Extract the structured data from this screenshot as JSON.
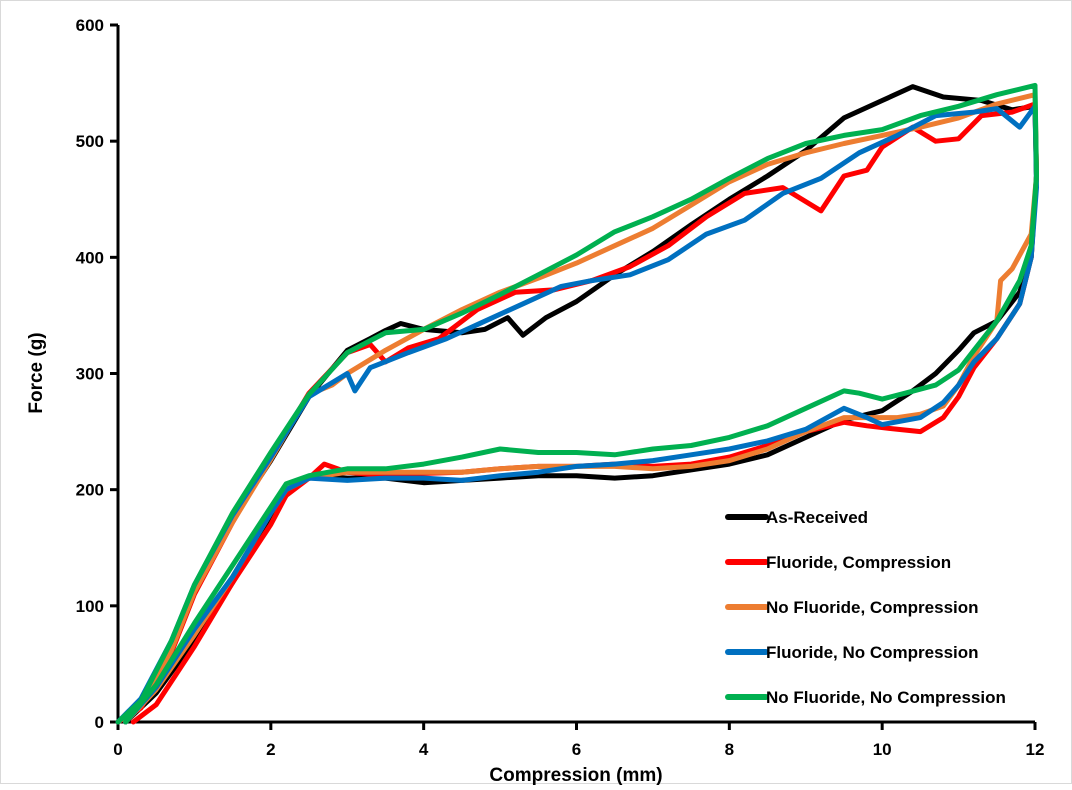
{
  "chart_data": {
    "type": "line",
    "title": "",
    "xlabel": "Compression (mm)",
    "ylabel": "Force (g)",
    "xlim": [
      0,
      12
    ],
    "ylim": [
      0,
      600
    ],
    "xticks": [
      0,
      2,
      4,
      6,
      8,
      10,
      12
    ],
    "yticks": [
      0,
      100,
      200,
      300,
      400,
      500,
      600
    ],
    "grid": false,
    "legend_position": "bottom-right",
    "series": [
      {
        "name": "As-Received",
        "color": "#000000",
        "points": [
          [
            0,
            0
          ],
          [
            0.3,
            15
          ],
          [
            0.7,
            65
          ],
          [
            1.0,
            115
          ],
          [
            1.5,
            175
          ],
          [
            2.0,
            225
          ],
          [
            2.5,
            280
          ],
          [
            3.0,
            320
          ],
          [
            3.3,
            330
          ],
          [
            3.5,
            337
          ],
          [
            3.7,
            343
          ],
          [
            4.0,
            338
          ],
          [
            4.5,
            335
          ],
          [
            4.8,
            338
          ],
          [
            5.1,
            348
          ],
          [
            5.3,
            333
          ],
          [
            5.6,
            348
          ],
          [
            6.0,
            362
          ],
          [
            6.5,
            385
          ],
          [
            7.0,
            405
          ],
          [
            7.5,
            428
          ],
          [
            8.0,
            450
          ],
          [
            8.5,
            470
          ],
          [
            9.0,
            492
          ],
          [
            9.5,
            520
          ],
          [
            10.0,
            535
          ],
          [
            10.4,
            547
          ],
          [
            10.8,
            538
          ],
          [
            11.3,
            535
          ],
          [
            11.7,
            527
          ],
          [
            12.0,
            530
          ],
          [
            12.02,
            470
          ],
          [
            11.95,
            400
          ],
          [
            11.8,
            370
          ],
          [
            11.5,
            345
          ],
          [
            11.2,
            335
          ],
          [
            11.0,
            320
          ],
          [
            10.7,
            300
          ],
          [
            10.4,
            285
          ],
          [
            10.0,
            268
          ],
          [
            9.5,
            260
          ],
          [
            9.0,
            245
          ],
          [
            8.5,
            230
          ],
          [
            8.0,
            222
          ],
          [
            7.5,
            217
          ],
          [
            7.0,
            212
          ],
          [
            6.5,
            210
          ],
          [
            6.0,
            212
          ],
          [
            5.5,
            212
          ],
          [
            5.0,
            210
          ],
          [
            4.5,
            208
          ],
          [
            4.0,
            206
          ],
          [
            3.5,
            210
          ],
          [
            3.0,
            210
          ],
          [
            2.6,
            212
          ],
          [
            2.3,
            205
          ],
          [
            2.0,
            175
          ],
          [
            1.5,
            120
          ],
          [
            1.0,
            70
          ],
          [
            0.5,
            25
          ],
          [
            0.1,
            0
          ]
        ]
      },
      {
        "name": "Fluoride, Compression",
        "color": "#ff0000",
        "points": [
          [
            0,
            0
          ],
          [
            0.3,
            12
          ],
          [
            0.7,
            60
          ],
          [
            1.0,
            110
          ],
          [
            1.5,
            172
          ],
          [
            2.0,
            228
          ],
          [
            2.5,
            283
          ],
          [
            3.0,
            318
          ],
          [
            3.3,
            325
          ],
          [
            3.5,
            310
          ],
          [
            3.8,
            322
          ],
          [
            4.2,
            330
          ],
          [
            4.7,
            355
          ],
          [
            5.2,
            370
          ],
          [
            5.7,
            372
          ],
          [
            6.2,
            380
          ],
          [
            6.7,
            392
          ],
          [
            7.2,
            410
          ],
          [
            7.7,
            435
          ],
          [
            8.2,
            455
          ],
          [
            8.7,
            460
          ],
          [
            9.0,
            448
          ],
          [
            9.2,
            440
          ],
          [
            9.5,
            470
          ],
          [
            9.8,
            475
          ],
          [
            10.0,
            495
          ],
          [
            10.4,
            512
          ],
          [
            10.7,
            500
          ],
          [
            11.0,
            502
          ],
          [
            11.3,
            522
          ],
          [
            11.7,
            525
          ],
          [
            12.0,
            532
          ],
          [
            12.02,
            470
          ],
          [
            11.95,
            400
          ],
          [
            11.8,
            360
          ],
          [
            11.5,
            330
          ],
          [
            11.2,
            305
          ],
          [
            11.0,
            280
          ],
          [
            10.8,
            262
          ],
          [
            10.5,
            250
          ],
          [
            10.2,
            252
          ],
          [
            9.8,
            255
          ],
          [
            9.5,
            258
          ],
          [
            9.0,
            250
          ],
          [
            8.5,
            238
          ],
          [
            8.0,
            228
          ],
          [
            7.5,
            222
          ],
          [
            7.0,
            220
          ],
          [
            6.5,
            222
          ],
          [
            6.0,
            220
          ],
          [
            5.5,
            220
          ],
          [
            5.0,
            218
          ],
          [
            4.5,
            215
          ],
          [
            4.0,
            214
          ],
          [
            3.5,
            212
          ],
          [
            3.0,
            215
          ],
          [
            2.7,
            222
          ],
          [
            2.5,
            210
          ],
          [
            2.2,
            195
          ],
          [
            2.0,
            170
          ],
          [
            1.5,
            120
          ],
          [
            1.0,
            65
          ],
          [
            0.5,
            15
          ],
          [
            0.2,
            0
          ]
        ]
      },
      {
        "name": "No Fluoride, Compression",
        "color": "#ed7d31",
        "points": [
          [
            0,
            0
          ],
          [
            0.3,
            15
          ],
          [
            0.7,
            62
          ],
          [
            1.0,
            112
          ],
          [
            1.5,
            172
          ],
          [
            2.0,
            226
          ],
          [
            2.5,
            282
          ],
          [
            2.8,
            290
          ],
          [
            3.0,
            300
          ],
          [
            3.5,
            320
          ],
          [
            4.0,
            338
          ],
          [
            4.5,
            355
          ],
          [
            5.0,
            370
          ],
          [
            5.5,
            382
          ],
          [
            6.0,
            395
          ],
          [
            6.5,
            410
          ],
          [
            7.0,
            425
          ],
          [
            7.5,
            445
          ],
          [
            8.0,
            465
          ],
          [
            8.5,
            480
          ],
          [
            9.0,
            490
          ],
          [
            9.5,
            498
          ],
          [
            10.0,
            505
          ],
          [
            10.5,
            512
          ],
          [
            11.0,
            520
          ],
          [
            11.5,
            532
          ],
          [
            12.0,
            540
          ],
          [
            12.02,
            470
          ],
          [
            11.95,
            420
          ],
          [
            11.7,
            390
          ],
          [
            11.55,
            380
          ],
          [
            11.5,
            345
          ],
          [
            11.2,
            315
          ],
          [
            11.0,
            290
          ],
          [
            10.8,
            272
          ],
          [
            10.5,
            265
          ],
          [
            10.2,
            262
          ],
          [
            10.0,
            262
          ],
          [
            9.5,
            262
          ],
          [
            9.0,
            250
          ],
          [
            8.5,
            235
          ],
          [
            8.0,
            225
          ],
          [
            7.5,
            220
          ],
          [
            7.0,
            218
          ],
          [
            6.5,
            220
          ],
          [
            6.0,
            220
          ],
          [
            5.5,
            220
          ],
          [
            5.0,
            218
          ],
          [
            4.5,
            215
          ],
          [
            4.0,
            215
          ],
          [
            3.5,
            215
          ],
          [
            3.0,
            215
          ],
          [
            2.5,
            210
          ],
          [
            2.2,
            200
          ],
          [
            2.0,
            180
          ],
          [
            1.5,
            125
          ],
          [
            1.0,
            75
          ],
          [
            0.5,
            28
          ],
          [
            0.1,
            0
          ]
        ]
      },
      {
        "name": "Fluoride, No Compression",
        "color": "#0070c0",
        "points": [
          [
            0,
            0
          ],
          [
            0.3,
            20
          ],
          [
            0.7,
            70
          ],
          [
            1.0,
            118
          ],
          [
            1.5,
            178
          ],
          [
            2.0,
            228
          ],
          [
            2.5,
            280
          ],
          [
            3.0,
            300
          ],
          [
            3.1,
            285
          ],
          [
            3.3,
            305
          ],
          [
            3.8,
            318
          ],
          [
            4.3,
            330
          ],
          [
            4.8,
            345
          ],
          [
            5.3,
            360
          ],
          [
            5.8,
            375
          ],
          [
            6.2,
            380
          ],
          [
            6.7,
            385
          ],
          [
            7.2,
            398
          ],
          [
            7.7,
            420
          ],
          [
            8.2,
            432
          ],
          [
            8.7,
            455
          ],
          [
            9.2,
            468
          ],
          [
            9.7,
            490
          ],
          [
            10.2,
            505
          ],
          [
            10.7,
            522
          ],
          [
            11.2,
            525
          ],
          [
            11.5,
            528
          ],
          [
            11.8,
            512
          ],
          [
            12.0,
            530
          ],
          [
            12.02,
            460
          ],
          [
            11.95,
            400
          ],
          [
            11.8,
            360
          ],
          [
            11.5,
            330
          ],
          [
            11.2,
            310
          ],
          [
            11.0,
            290
          ],
          [
            10.8,
            275
          ],
          [
            10.5,
            262
          ],
          [
            10.0,
            256
          ],
          [
            9.8,
            262
          ],
          [
            9.5,
            270
          ],
          [
            9.0,
            252
          ],
          [
            8.5,
            242
          ],
          [
            8.0,
            235
          ],
          [
            7.5,
            230
          ],
          [
            7.0,
            225
          ],
          [
            6.5,
            222
          ],
          [
            6.0,
            220
          ],
          [
            5.5,
            215
          ],
          [
            5.0,
            212
          ],
          [
            4.5,
            208
          ],
          [
            4.0,
            210
          ],
          [
            3.5,
            210
          ],
          [
            3.0,
            208
          ],
          [
            2.5,
            210
          ],
          [
            2.2,
            200
          ],
          [
            2.0,
            180
          ],
          [
            1.5,
            125
          ],
          [
            1.0,
            80
          ],
          [
            0.5,
            30
          ],
          [
            0.1,
            0
          ]
        ]
      },
      {
        "name": "No Fluoride, No Compression",
        "color": "#00b050",
        "points": [
          [
            0,
            0
          ],
          [
            0.3,
            18
          ],
          [
            0.7,
            70
          ],
          [
            1.0,
            118
          ],
          [
            1.5,
            180
          ],
          [
            2.0,
            232
          ],
          [
            2.5,
            282
          ],
          [
            3.0,
            318
          ],
          [
            3.5,
            335
          ],
          [
            4.0,
            338
          ],
          [
            4.5,
            352
          ],
          [
            5.0,
            368
          ],
          [
            5.5,
            385
          ],
          [
            6.0,
            402
          ],
          [
            6.5,
            422
          ],
          [
            7.0,
            435
          ],
          [
            7.5,
            450
          ],
          [
            8.0,
            468
          ],
          [
            8.5,
            485
          ],
          [
            9.0,
            498
          ],
          [
            9.5,
            505
          ],
          [
            10.0,
            510
          ],
          [
            10.5,
            522
          ],
          [
            11.0,
            530
          ],
          [
            11.5,
            540
          ],
          [
            12.0,
            548
          ],
          [
            12.02,
            470
          ],
          [
            11.95,
            410
          ],
          [
            11.8,
            380
          ],
          [
            11.5,
            345
          ],
          [
            11.2,
            320
          ],
          [
            11.0,
            303
          ],
          [
            10.7,
            290
          ],
          [
            10.3,
            283
          ],
          [
            10.0,
            278
          ],
          [
            9.7,
            283
          ],
          [
            9.5,
            285
          ],
          [
            9.0,
            270
          ],
          [
            8.5,
            255
          ],
          [
            8.0,
            245
          ],
          [
            7.5,
            238
          ],
          [
            7.0,
            235
          ],
          [
            6.5,
            230
          ],
          [
            6.0,
            232
          ],
          [
            5.5,
            232
          ],
          [
            5.0,
            235
          ],
          [
            4.5,
            228
          ],
          [
            4.0,
            222
          ],
          [
            3.5,
            218
          ],
          [
            3.0,
            218
          ],
          [
            2.5,
            212
          ],
          [
            2.2,
            205
          ],
          [
            2.0,
            185
          ],
          [
            1.5,
            135
          ],
          [
            1.0,
            85
          ],
          [
            0.5,
            32
          ],
          [
            0.1,
            0
          ]
        ]
      }
    ]
  }
}
